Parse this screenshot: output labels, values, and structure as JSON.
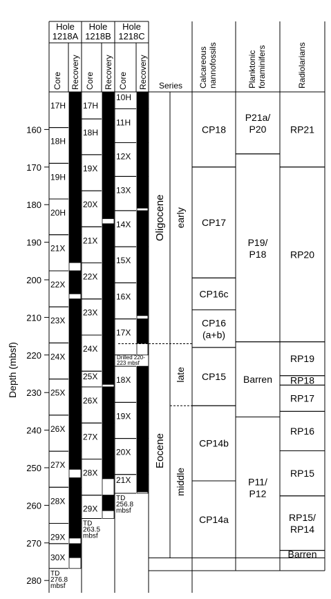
{
  "y_axis": {
    "label": "Depth (mbsf)",
    "range": [
      150,
      280
    ],
    "ticks": [
      160,
      170,
      180,
      190,
      200,
      210,
      220,
      230,
      240,
      250,
      260,
      270,
      280
    ]
  },
  "holes": [
    {
      "title_line1": "Hole",
      "title_line2": "1218A",
      "core_label": "Core",
      "recovery_label": "Recovery",
      "td": {
        "line1": "TD",
        "line2": "276.8",
        "line3": "mbsf"
      },
      "cores": [
        {
          "name": "17H",
          "top": 150.0,
          "bottom": 159.5,
          "recovery": [
            [
              150.0,
              159.5
            ]
          ]
        },
        {
          "name": "18H",
          "top": 159.5,
          "bottom": 169.0,
          "recovery": [
            [
              159.5,
              169.0
            ]
          ]
        },
        {
          "name": "19H",
          "top": 169.0,
          "bottom": 178.5,
          "recovery": [
            [
              169.0,
              178.5
            ]
          ]
        },
        {
          "name": "20H",
          "top": 178.5,
          "bottom": 188.0,
          "recovery": [
            [
              178.5,
              188.0
            ]
          ]
        },
        {
          "name": "21X",
          "top": 188.0,
          "bottom": 197.6,
          "recovery": [
            [
              188.0,
              195.5
            ]
          ]
        },
        {
          "name": "22X",
          "top": 197.6,
          "bottom": 207.2,
          "recovery": [
            [
              197.6,
              203.8
            ],
            [
              205.0,
              207.2
            ]
          ]
        },
        {
          "name": "23X",
          "top": 207.2,
          "bottom": 216.8,
          "recovery": [
            [
              207.2,
              216.8
            ]
          ]
        },
        {
          "name": "24X",
          "top": 216.8,
          "bottom": 226.4,
          "recovery": [
            [
              216.8,
              226.4
            ]
          ]
        },
        {
          "name": "25X",
          "top": 226.4,
          "bottom": 236.0,
          "recovery": [
            [
              226.4,
              236.0
            ]
          ]
        },
        {
          "name": "26X",
          "top": 236.0,
          "bottom": 245.6,
          "recovery": [
            [
              236.0,
              245.6
            ]
          ]
        },
        {
          "name": "27X",
          "top": 245.6,
          "bottom": 255.2,
          "recovery": [
            [
              245.6,
              250.5
            ],
            [
              252.6,
              255.2
            ]
          ]
        },
        {
          "name": "28X",
          "top": 255.2,
          "bottom": 264.8,
          "recovery": [
            [
              255.2,
              264.8
            ]
          ]
        },
        {
          "name": "29X",
          "top": 264.8,
          "bottom": 270.2,
          "recovery": [
            [
              264.8,
              268.8
            ]
          ]
        },
        {
          "name": "30X",
          "top": 270.2,
          "bottom": 276.8,
          "recovery": [
            [
              270.2,
              274.0
            ]
          ]
        }
      ]
    },
    {
      "title_line1": "Hole",
      "title_line2": "1218B",
      "core_label": "Core",
      "recovery_label": "Recovery",
      "td": {
        "line1": "TD",
        "line2": "263.5",
        "line3": "mbsf"
      },
      "cores": [
        {
          "name": "17H",
          "top": 150.0,
          "bottom": 157.2,
          "recovery": [
            [
              150.0,
              157.2
            ]
          ]
        },
        {
          "name": "18H",
          "top": 157.2,
          "bottom": 166.7,
          "recovery": [
            [
              157.2,
              166.7
            ]
          ]
        },
        {
          "name": "19X",
          "top": 166.7,
          "bottom": 176.3,
          "recovery": [
            [
              166.7,
              176.3
            ]
          ]
        },
        {
          "name": "20X",
          "top": 176.3,
          "bottom": 185.9,
          "recovery": [
            [
              176.3,
              183.8
            ],
            [
              185.0,
              185.9
            ]
          ]
        },
        {
          "name": "21X",
          "top": 185.9,
          "bottom": 195.5,
          "recovery": [
            [
              185.9,
              195.5
            ]
          ]
        },
        {
          "name": "22X",
          "top": 195.5,
          "bottom": 205.1,
          "recovery": [
            [
              195.5,
              205.1
            ]
          ]
        },
        {
          "name": "23X",
          "top": 205.1,
          "bottom": 214.7,
          "recovery": [
            [
              205.1,
              214.7
            ]
          ]
        },
        {
          "name": "24X",
          "top": 214.7,
          "bottom": 224.3,
          "recovery": [
            [
              214.7,
              224.3
            ]
          ]
        },
        {
          "name": "25X",
          "top": 224.3,
          "bottom": 228.5,
          "recovery": [
            [
              224.3,
              227.9
            ],
            [
              228.4,
              228.5
            ]
          ]
        },
        {
          "name": "26X",
          "top": 228.5,
          "bottom": 238.1,
          "recovery": [
            [
              228.5,
              238.1
            ]
          ]
        },
        {
          "name": "27X",
          "top": 238.1,
          "bottom": 247.7,
          "recovery": [
            [
              238.1,
              247.7
            ]
          ]
        },
        {
          "name": "28X",
          "top": 247.7,
          "bottom": 257.3,
          "recovery": [
            [
              247.7,
              253.0
            ]
          ]
        },
        {
          "name": "29X",
          "top": 257.3,
          "bottom": 263.5,
          "recovery": [
            [
              257.3,
              261.5
            ]
          ]
        }
      ]
    },
    {
      "title_line1": "Hole",
      "title_line2": "1218C",
      "core_label": "Core",
      "recovery_label": "Recovery",
      "td": {
        "line1": "TD",
        "line2": "256.8",
        "line3": "mbsf"
      },
      "drilled": {
        "line1": "Drilled 220-",
        "line2": "223 mbsf",
        "top": 220.0,
        "bottom": 223.0
      },
      "cores": [
        {
          "name": "10H",
          "top": 150.0,
          "bottom": 154.5,
          "recovery": [
            [
              150.0,
              154.5
            ]
          ]
        },
        {
          "name": "11H",
          "top": 154.5,
          "bottom": 163.5,
          "recovery": [
            [
              154.5,
              163.5
            ]
          ]
        },
        {
          "name": "12X",
          "top": 163.5,
          "bottom": 172.5,
          "recovery": [
            [
              163.5,
              172.5
            ]
          ]
        },
        {
          "name": "13X",
          "top": 172.5,
          "bottom": 181.6,
          "recovery": [
            [
              172.5,
              181.0
            ],
            [
              181.6,
              181.6
            ]
          ]
        },
        {
          "name": "14X",
          "top": 181.6,
          "bottom": 191.2,
          "recovery": [
            [
              181.6,
              191.2
            ]
          ]
        },
        {
          "name": "15X",
          "top": 191.2,
          "bottom": 200.8,
          "recovery": [
            [
              191.2,
              200.8
            ]
          ]
        },
        {
          "name": "16X",
          "top": 200.8,
          "bottom": 210.4,
          "recovery": [
            [
              200.8,
              209.6
            ]
          ]
        },
        {
          "name": "17X",
          "top": 210.4,
          "bottom": 220.0,
          "recovery": [
            [
              210.4,
              217.0
            ]
          ]
        },
        {
          "name": "18X",
          "top": 223.0,
          "bottom": 232.6,
          "recovery": [
            [
              223.0,
              232.6
            ]
          ]
        },
        {
          "name": "19X",
          "top": 232.6,
          "bottom": 242.2,
          "recovery": [
            [
              232.6,
              242.2
            ]
          ]
        },
        {
          "name": "20X",
          "top": 242.2,
          "bottom": 251.8,
          "recovery": [
            [
              242.2,
              251.8
            ]
          ]
        },
        {
          "name": "21X",
          "top": 251.8,
          "bottom": 256.8,
          "recovery": [
            [
              251.8,
              256.5
            ]
          ]
        }
      ]
    }
  ],
  "series": {
    "header": "Series",
    "units": [
      {
        "series": "Oligocene",
        "top": 150.0,
        "bottom": 217.0,
        "subdivisions": [
          {
            "label": "early",
            "top": 150.0,
            "bottom": 217.0
          }
        ]
      },
      {
        "series": "Eocene",
        "top": 217.0,
        "bottom": 274.0,
        "subdivisions": [
          {
            "label": "late",
            "top": 217.0,
            "bottom": 233.5
          },
          {
            "label": "middle",
            "top": 233.5,
            "bottom": 274.0
          }
        ]
      }
    ]
  },
  "nannofossils": {
    "header_line1": "Calcareous",
    "header_line2": "nannofossils",
    "zones": [
      {
        "label": "CP18",
        "top": 150.0,
        "bottom": 170.0
      },
      {
        "label": "CP17",
        "top": 170.0,
        "bottom": 199.5
      },
      {
        "label": "CP16c",
        "top": 199.5,
        "bottom": 208.0
      },
      {
        "label": "CP16",
        "label2": "(a+b)",
        "top": 208.0,
        "bottom": 218.0
      },
      {
        "label": "CP15",
        "top": 218.0,
        "bottom": 233.5
      },
      {
        "label": "CP14b",
        "top": 233.5,
        "bottom": 253.5
      },
      {
        "label": "CP14a",
        "top": 253.5,
        "bottom": 274.0
      }
    ]
  },
  "foraminifers": {
    "header_line1": "Planktonic",
    "header_line2": "foraminifers",
    "zones": [
      {
        "label": "P21a/",
        "label2": "P20",
        "top": 150.0,
        "bottom": 166.5
      },
      {
        "label": "P19/",
        "label2": "P18",
        "top": 166.5,
        "bottom": 216.5
      },
      {
        "label": "Barren",
        "top": 216.5,
        "bottom": 236.5
      },
      {
        "label": "P11/",
        "label2": "P12",
        "top": 236.5,
        "bottom": 274.0
      }
    ]
  },
  "radiolarians": {
    "header": "Radiolarians",
    "zones": [
      {
        "label": "RP21",
        "top": 150.0,
        "bottom": 170.0
      },
      {
        "label": "RP20",
        "top": 170.0,
        "bottom": 216.5
      },
      {
        "label": "RP19",
        "top": 216.5,
        "bottom": 225.5
      },
      {
        "label": "RP18",
        "top": 225.5,
        "bottom": 228.0
      },
      {
        "label": "RP17",
        "top": 228.0,
        "bottom": 235.0
      },
      {
        "label": "RP16",
        "top": 235.0,
        "bottom": 245.5
      },
      {
        "label": "RP15",
        "top": 245.5,
        "bottom": 257.5
      },
      {
        "label": "RP15/",
        "label2": "RP14",
        "top": 257.5,
        "bottom": 272.0
      },
      {
        "label": "Barren",
        "top": 272.0,
        "bottom": 274.0
      }
    ]
  }
}
